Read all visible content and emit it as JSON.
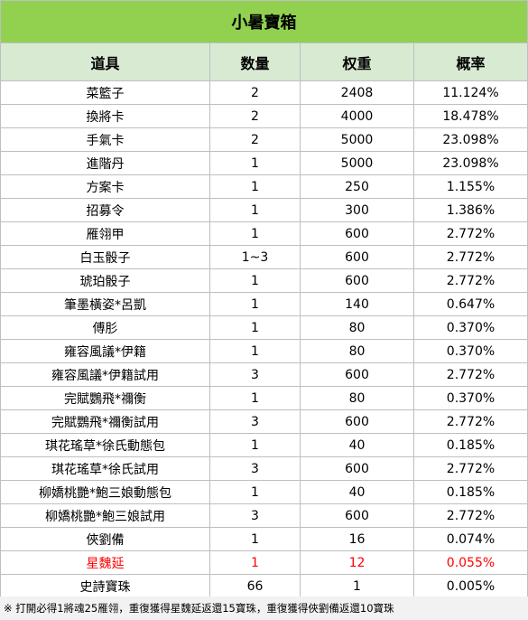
{
  "title": "小暑寶箱",
  "headers": [
    "道具",
    "数量",
    "权重",
    "概率"
  ],
  "rows": [
    [
      "菜籃子",
      "2",
      "2408",
      "11.124%"
    ],
    [
      "換將卡",
      "2",
      "4000",
      "18.478%"
    ],
    [
      "手氣卡",
      "2",
      "5000",
      "23.098%"
    ],
    [
      "進階丹",
      "1",
      "5000",
      "23.098%"
    ],
    [
      "方案卡",
      "1",
      "250",
      "1.155%"
    ],
    [
      "招募令",
      "1",
      "300",
      "1.386%"
    ],
    [
      "雁翎甲",
      "1",
      "600",
      "2.772%"
    ],
    [
      "白玉骰子",
      "1~3",
      "600",
      "2.772%"
    ],
    [
      "琥珀骰子",
      "1",
      "600",
      "2.772%"
    ],
    [
      "筆墨橫姿*呂凱",
      "1",
      "140",
      "0.647%"
    ],
    [
      "傅肜",
      "1",
      "80",
      "0.370%"
    ],
    [
      "雍容風議*伊籍",
      "1",
      "80",
      "0.370%"
    ],
    [
      "雍容風議*伊籍試用",
      "3",
      "600",
      "2.772%"
    ],
    [
      "完賦鸚飛*禰衡",
      "1",
      "80",
      "0.370%"
    ],
    [
      "完賦鸚飛*禰衡試用",
      "3",
      "600",
      "2.772%"
    ],
    [
      "琪花瑤草*徐氏動態包",
      "1",
      "40",
      "0.185%"
    ],
    [
      "琪花瑤草*徐氏試用",
      "3",
      "600",
      "2.772%"
    ],
    [
      "柳嬌桃艷*鮑三娘動態包",
      "1",
      "40",
      "0.185%"
    ],
    [
      "柳嬌桃艷*鮑三娘試用",
      "3",
      "600",
      "2.772%"
    ],
    [
      "俠劉備",
      "1",
      "16",
      "0.074%"
    ],
    [
      "星魏延",
      "1",
      "12",
      "0.055%"
    ],
    [
      "史詩寶珠",
      "66",
      "1",
      "0.005%"
    ]
  ],
  "highlight_row_index": 20,
  "highlight_color": "#ff0000",
  "title_bg": "#92d050",
  "header_bg": "#d9ead3",
  "footnote": "※ 打開必得1將魂25雁翎，重復獲得星魏延返還15寶珠，重復獲得俠劉備返還10寶珠"
}
